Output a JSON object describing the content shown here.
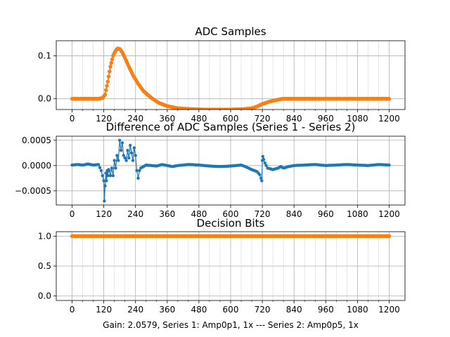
{
  "figure": {
    "footer": "Gain: 2.0579, Series 1: Amp0p1, 1x --- Series 2: Amp0p5, 1x",
    "colors": {
      "series1": "#1f77b4",
      "series2": "#ff7f0e",
      "grid": "#b0b0b0"
    }
  },
  "chart_data": [
    {
      "type": "line",
      "title": "ADC Samples",
      "xlim": [
        -60,
        1260
      ],
      "ylim": [
        -0.025,
        0.135
      ],
      "xticks": [
        0,
        120,
        240,
        360,
        480,
        600,
        720,
        840,
        960,
        1080,
        1200
      ],
      "yticks": [
        0.0,
        0.1
      ],
      "ytick_labels": [
        "0.0",
        "0.1"
      ],
      "grid": true,
      "markers": true,
      "series": [
        {
          "color": "#1f77b4",
          "x": [
            0,
            100,
            115,
            125,
            135,
            145,
            155,
            165,
            172,
            180,
            190,
            200,
            215,
            230,
            250,
            270,
            300,
            330,
            360,
            400,
            450,
            500,
            550,
            600,
            650,
            680,
            700,
            720,
            750,
            780,
            800,
            840,
            900,
            1000,
            1100,
            1200
          ],
          "y": [
            0,
            0,
            0.002,
            0.01,
            0.04,
            0.075,
            0.1,
            0.112,
            0.117,
            0.116,
            0.108,
            0.095,
            0.075,
            0.055,
            0.035,
            0.018,
            0.002,
            -0.01,
            -0.017,
            -0.022,
            -0.024,
            -0.025,
            -0.025,
            -0.025,
            -0.024,
            -0.022,
            -0.018,
            -0.012,
            -0.006,
            -0.002,
            0,
            0,
            0,
            0,
            0,
            0
          ]
        },
        {
          "color": "#ff7f0e",
          "x": [
            0,
            100,
            115,
            125,
            135,
            145,
            155,
            165,
            172,
            180,
            190,
            200,
            215,
            230,
            250,
            270,
            300,
            330,
            360,
            400,
            450,
            500,
            550,
            600,
            650,
            680,
            700,
            720,
            750,
            780,
            800,
            840,
            900,
            1000,
            1100,
            1200
          ],
          "y": [
            0,
            0,
            0.002,
            0.01,
            0.04,
            0.075,
            0.1,
            0.112,
            0.117,
            0.116,
            0.108,
            0.095,
            0.075,
            0.055,
            0.035,
            0.018,
            0.002,
            -0.01,
            -0.017,
            -0.022,
            -0.024,
            -0.025,
            -0.025,
            -0.025,
            -0.024,
            -0.022,
            -0.018,
            -0.012,
            -0.006,
            -0.002,
            0,
            0,
            0,
            0,
            0,
            0
          ]
        }
      ]
    },
    {
      "type": "line",
      "title": "Difference of ADC Samples (Series 1 - Series 2)",
      "xlim": [
        -60,
        1260
      ],
      "ylim": [
        -0.00078,
        0.00058
      ],
      "xticks": [
        0,
        120,
        240,
        360,
        480,
        600,
        720,
        840,
        960,
        1080,
        1200
      ],
      "yticks": [
        -0.0005,
        0.0,
        0.0005
      ],
      "ytick_labels": [
        "−0.0005",
        "0.0000",
        "0.0005"
      ],
      "grid": true,
      "markers": true,
      "series": [
        {
          "color": "#1f77b4",
          "x": [
            0,
            20,
            40,
            60,
            80,
            100,
            110,
            115,
            120,
            122,
            125,
            128,
            130,
            133,
            135,
            138,
            140,
            145,
            150,
            155,
            160,
            165,
            170,
            175,
            180,
            185,
            190,
            195,
            200,
            205,
            210,
            215,
            220,
            225,
            230,
            235,
            240,
            245,
            250,
            255,
            260,
            270,
            280,
            300,
            320,
            340,
            360,
            380,
            400,
            440,
            480,
            520,
            560,
            600,
            640,
            660,
            680,
            700,
            710,
            715,
            718,
            720,
            722,
            725,
            730,
            740,
            760,
            780,
            790,
            800,
            820,
            840,
            880,
            920,
            960,
            1000,
            1040,
            1080,
            1120,
            1160,
            1200
          ],
          "y": [
            1e-05,
            2e-05,
            1e-05,
            3e-05,
            1e-05,
            2e-05,
            -0.0001,
            -0.0002,
            -0.0003,
            -0.0007,
            -0.0004,
            -0.00015,
            -0.0003,
            -0.0001,
            -0.0002,
            -8e-05,
            -0.0001,
            -0.0002,
            -5e-05,
            -0.0002,
            0.0001,
            -5e-05,
            0.0002,
            0.0001,
            0.0005,
            0.0003,
            0.00045,
            0.0002,
            0.00015,
            0.0001,
            0.0003,
            0.00015,
            0.0004,
            0.00025,
            0.0001,
            0.00035,
            0.0002,
            -0.0001,
            -0.00025,
            -0.0001,
            -5e-05,
            -2e-05,
            1e-05,
            0.0,
            -1e-05,
            2e-05,
            0.0,
            -2e-05,
            0.0,
            2e-05,
            1e-05,
            -1e-05,
            -2e-05,
            -1e-05,
            1e-05,
            -3e-05,
            -8e-05,
            -0.00012,
            -0.00018,
            -0.00025,
            -0.0003,
            0.0001,
            0.00018,
            0.00012,
            5e-05,
            -5e-05,
            -8e-05,
            -5e-05,
            -2e-05,
            -5e-05,
            -2e-05,
            0.0,
            1e-05,
            2e-05,
            0.0,
            1e-05,
            2e-05,
            1e-05,
            0.0,
            2e-05,
            1e-05
          ]
        }
      ]
    },
    {
      "type": "line",
      "title": "Decision Bits",
      "xlim": [
        -60,
        1260
      ],
      "ylim": [
        -0.075,
        1.075
      ],
      "xticks": [
        0,
        120,
        240,
        360,
        480,
        600,
        720,
        840,
        960,
        1080,
        1200
      ],
      "yticks": [
        0.0,
        0.5,
        1.0
      ],
      "ytick_labels": [
        "0.0",
        "0.5",
        "1.0"
      ],
      "grid": true,
      "markers": true,
      "series": [
        {
          "color": "#1f77b4",
          "x": [
            0,
            1200
          ],
          "y": [
            1,
            1
          ]
        },
        {
          "color": "#ff7f0e",
          "x": [
            0,
            1200
          ],
          "y": [
            1,
            1
          ]
        }
      ]
    }
  ]
}
